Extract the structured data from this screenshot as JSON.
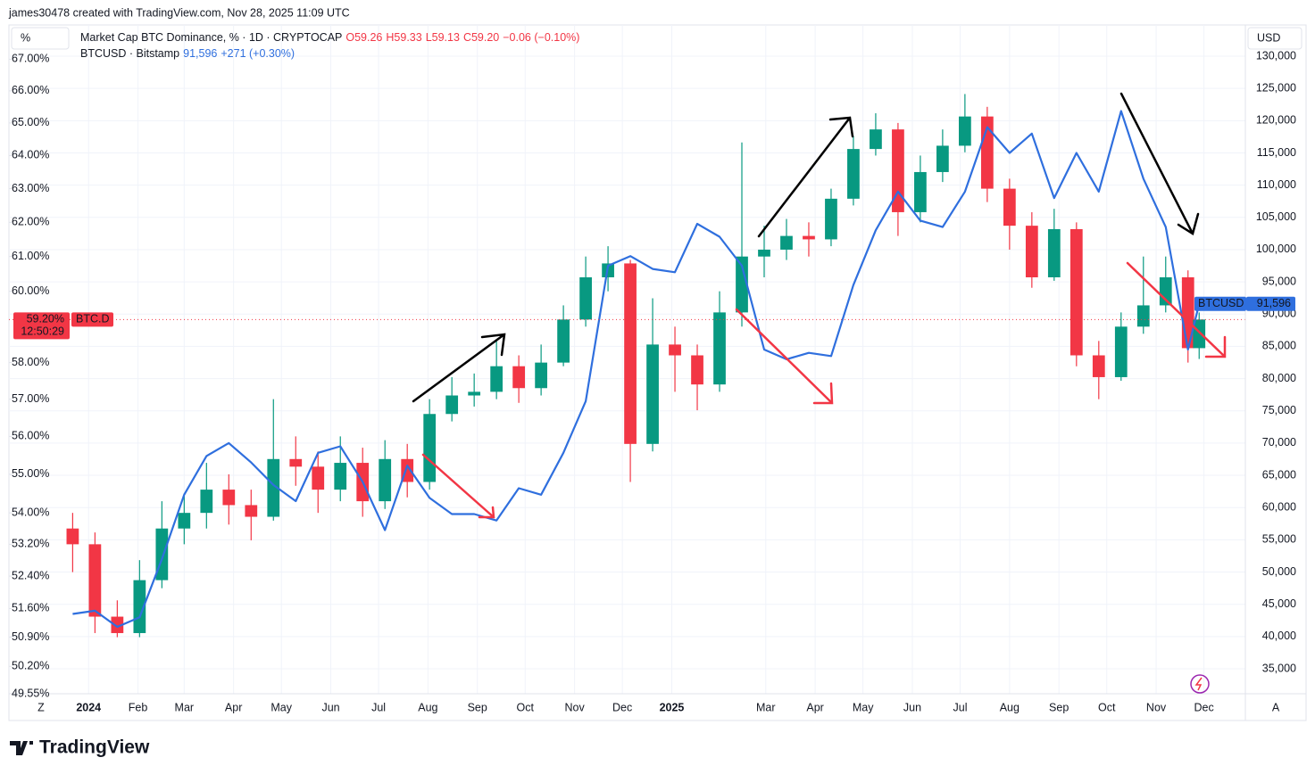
{
  "header": {
    "credit": "james30478 created with TradingView.com, Nov 28, 2025 11:09 UTC",
    "left_unit": "%",
    "right_unit": "USD"
  },
  "controls": {
    "left": "Z",
    "right": "A"
  },
  "footer": {
    "brand": "TradingView"
  },
  "chart_data": {
    "type": "candlestick",
    "x": [
      "2023-12-22",
      "2024-01-05",
      "2024-01-19",
      "2024-02-02",
      "2024-02-16",
      "2024-03-01",
      "2024-03-15",
      "2024-03-29",
      "2024-04-12",
      "2024-04-26",
      "2024-05-10",
      "2024-05-24",
      "2024-06-07",
      "2024-06-21",
      "2024-07-05",
      "2024-07-19",
      "2024-08-02",
      "2024-08-16",
      "2024-08-30",
      "2024-09-13",
      "2024-09-27",
      "2024-10-11",
      "2024-10-25",
      "2024-11-08",
      "2024-11-22",
      "2024-12-06",
      "2024-12-20",
      "2025-01-03",
      "2025-01-17",
      "2025-01-31",
      "2025-02-14",
      "2025-02-28",
      "2025-03-14",
      "2025-03-28",
      "2025-04-11",
      "2025-04-25",
      "2025-05-09",
      "2025-05-23",
      "2025-06-06",
      "2025-06-20",
      "2025-07-04",
      "2025-07-18",
      "2025-08-01",
      "2025-08-15",
      "2025-08-29",
      "2025-09-12",
      "2025-09-26",
      "2025-10-10",
      "2025-10-24",
      "2025-11-07",
      "2025-11-21",
      "2025-11-28"
    ],
    "xlim": [
      "2023-11-12",
      "2025-12-27"
    ],
    "xticks": [
      {
        "value": "2024-01-01",
        "label": "2024"
      },
      {
        "value": "2024-02-01",
        "label": "Feb"
      },
      {
        "value": "2024-03-01",
        "label": "Mar"
      },
      {
        "value": "2024-04-01",
        "label": "Apr"
      },
      {
        "value": "2024-05-01",
        "label": "May"
      },
      {
        "value": "2024-06-01",
        "label": "Jun"
      },
      {
        "value": "2024-07-01",
        "label": "Jul"
      },
      {
        "value": "2024-08-01",
        "label": "Aug"
      },
      {
        "value": "2024-09-01",
        "label": "Sep"
      },
      {
        "value": "2024-10-01",
        "label": "Oct"
      },
      {
        "value": "2024-11-01",
        "label": "Nov"
      },
      {
        "value": "2024-12-01",
        "label": "Dec"
      },
      {
        "value": "2025-01-01",
        "label": "2025"
      },
      {
        "value": "2025-03-01",
        "label": "Mar"
      },
      {
        "value": "2025-04-01",
        "label": "Apr"
      },
      {
        "value": "2025-05-01",
        "label": "May"
      },
      {
        "value": "2025-06-01",
        "label": "Jun"
      },
      {
        "value": "2025-07-01",
        "label": "Jul"
      },
      {
        "value": "2025-08-01",
        "label": "Aug"
      },
      {
        "value": "2025-09-01",
        "label": "Sep"
      },
      {
        "value": "2025-10-01",
        "label": "Oct"
      },
      {
        "value": "2025-11-01",
        "label": "Nov"
      },
      {
        "value": "2025-12-01",
        "label": "Dec"
      }
    ],
    "ylim": [
      49.55,
      68.1
    ],
    "log_scale": true,
    "yticks": [
      {
        "value": 67,
        "label": "67.00%"
      },
      {
        "value": 66,
        "label": "66.00%"
      },
      {
        "value": 65,
        "label": "65.00%"
      },
      {
        "value": 64,
        "label": "64.00%"
      },
      {
        "value": 63,
        "label": "63.00%"
      },
      {
        "value": 62,
        "label": "62.00%"
      },
      {
        "value": 61,
        "label": "61.00%"
      },
      {
        "value": 60,
        "label": "60.00%"
      },
      {
        "value": 58,
        "label": "58.00%"
      },
      {
        "value": 57,
        "label": "57.00%"
      },
      {
        "value": 56,
        "label": "56.00%"
      },
      {
        "value": 55,
        "label": "55.00%"
      },
      {
        "value": 54,
        "label": "54.00%"
      },
      {
        "value": 53.2,
        "label": "53.20%"
      },
      {
        "value": 52.4,
        "label": "52.40%"
      },
      {
        "value": 51.6,
        "label": "51.60%"
      },
      {
        "value": 50.9,
        "label": "50.90%"
      },
      {
        "value": 50.2,
        "label": "50.20%"
      },
      {
        "value": 49.55,
        "label": "49.55%"
      }
    ],
    "y2lim": [
      31130,
      134840
    ],
    "y2ticks": [
      {
        "value": 35000,
        "label": "35,000"
      },
      {
        "value": 40000,
        "label": "40,000"
      },
      {
        "value": 45000,
        "label": "45,000"
      },
      {
        "value": 50000,
        "label": "50,000"
      },
      {
        "value": 55000,
        "label": "55,000"
      },
      {
        "value": 60000,
        "label": "60,000"
      },
      {
        "value": 65000,
        "label": "65,000"
      },
      {
        "value": 70000,
        "label": "70,000"
      },
      {
        "value": 75000,
        "label": "75,000"
      },
      {
        "value": 80000,
        "label": "80,000"
      },
      {
        "value": 85000,
        "label": "85,000"
      },
      {
        "value": 90000,
        "label": "90,000"
      },
      {
        "value": 95000,
        "label": "95,000"
      },
      {
        "value": 100000,
        "label": "100,000"
      },
      {
        "value": 105000,
        "label": "105,000"
      },
      {
        "value": 110000,
        "label": "110,000"
      },
      {
        "value": 115000,
        "label": "115,000"
      },
      {
        "value": 120000,
        "label": "120,000"
      },
      {
        "value": 125000,
        "label": "125,000"
      },
      {
        "value": 130000,
        "label": "130,000"
      }
    ],
    "grid": true,
    "series": [
      {
        "name": "Market Cap BTC Dominance, % · 1D · CRYPTOCAP",
        "type": "candlestick",
        "up_color": "#089981",
        "down_color": "#f23645",
        "quote": [
          "O59.26",
          "H59.33",
          "L59.13",
          "C59.20",
          "−0.06 (−0.10%)"
        ],
        "last_label": "59.20%",
        "countdown": "12:50:29",
        "tag": "BTC.D",
        "open": [
          53.6,
          53.2,
          51.4,
          51.0,
          52.3,
          53.6,
          54.0,
          54.6,
          54.2,
          53.9,
          55.4,
          55.2,
          54.6,
          55.3,
          54.3,
          55.4,
          54.8,
          56.6,
          57.1,
          57.2,
          57.9,
          57.3,
          58.0,
          59.2,
          60.4,
          60.8,
          55.8,
          58.5,
          58.2,
          57.4,
          59.4,
          61.0,
          61.2,
          61.6,
          61.5,
          62.7,
          64.2,
          64.8,
          62.3,
          63.5,
          64.3,
          65.2,
          63.0,
          61.9,
          60.4,
          61.8,
          58.2,
          57.6,
          59.0,
          59.6,
          60.4,
          58.4
        ],
        "high": [
          54.0,
          53.5,
          51.8,
          52.8,
          54.3,
          54.5,
          55.3,
          55.0,
          54.6,
          57.0,
          56.0,
          55.6,
          56.0,
          55.7,
          55.9,
          55.8,
          57.0,
          57.6,
          57.7,
          58.6,
          58.2,
          58.5,
          59.6,
          61.0,
          61.3,
          60.9,
          59.8,
          59.0,
          58.5,
          60.0,
          64.4,
          61.9,
          62.1,
          62.0,
          63.0,
          64.6,
          65.3,
          65.0,
          64.0,
          64.8,
          65.9,
          65.5,
          63.3,
          62.3,
          62.4,
          62.0,
          58.6,
          59.4,
          61.0,
          61.0,
          60.6,
          59.4
        ],
        "low": [
          52.5,
          51.0,
          50.9,
          50.9,
          52.1,
          53.2,
          53.6,
          53.7,
          53.3,
          53.8,
          54.7,
          54.0,
          54.3,
          53.9,
          54.1,
          54.4,
          54.6,
          56.4,
          56.8,
          57.0,
          56.9,
          57.1,
          57.9,
          59.0,
          60.0,
          54.8,
          55.6,
          57.2,
          56.7,
          57.2,
          59.0,
          60.4,
          60.9,
          61.0,
          61.3,
          62.5,
          64.0,
          61.6,
          62.0,
          63.2,
          64.1,
          62.6,
          61.2,
          60.1,
          60.3,
          57.9,
          57.0,
          57.5,
          58.8,
          59.4,
          58.0,
          58.1
        ],
        "close": [
          53.2,
          51.4,
          51.0,
          52.3,
          53.6,
          54.0,
          54.6,
          54.2,
          53.9,
          55.4,
          55.2,
          54.6,
          55.3,
          54.3,
          55.4,
          54.8,
          56.6,
          57.1,
          57.2,
          57.9,
          57.3,
          58.0,
          59.2,
          60.4,
          60.8,
          55.8,
          58.5,
          58.2,
          57.4,
          59.4,
          61.0,
          61.2,
          61.6,
          61.5,
          62.7,
          64.2,
          64.8,
          62.3,
          63.5,
          64.3,
          65.2,
          63.0,
          61.9,
          60.4,
          61.8,
          58.2,
          57.6,
          59.0,
          59.6,
          60.4,
          58.4,
          59.2
        ]
      },
      {
        "name": "BTCUSD · Bitstamp",
        "type": "line",
        "axis": "y2",
        "color": "#2f6fde",
        "quote": [
          "91,596",
          "+271 (+0.30%)"
        ],
        "tag": "BTCUSD",
        "last_label": "91,596",
        "values": [
          43500,
          44000,
          41500,
          43000,
          52000,
          62000,
          68000,
          70000,
          67000,
          63500,
          61000,
          68500,
          69500,
          64000,
          56500,
          66500,
          61500,
          59000,
          59000,
          58000,
          63000,
          62000,
          68500,
          76500,
          97500,
          99000,
          97000,
          96500,
          104000,
          102000,
          97500,
          84500,
          83000,
          84000,
          83500,
          94500,
          103000,
          109000,
          104500,
          103500,
          109000,
          119000,
          115000,
          118000,
          108000,
          115000,
          109000,
          121500,
          111000,
          103500,
          84500,
          91596
        ]
      }
    ]
  }
}
